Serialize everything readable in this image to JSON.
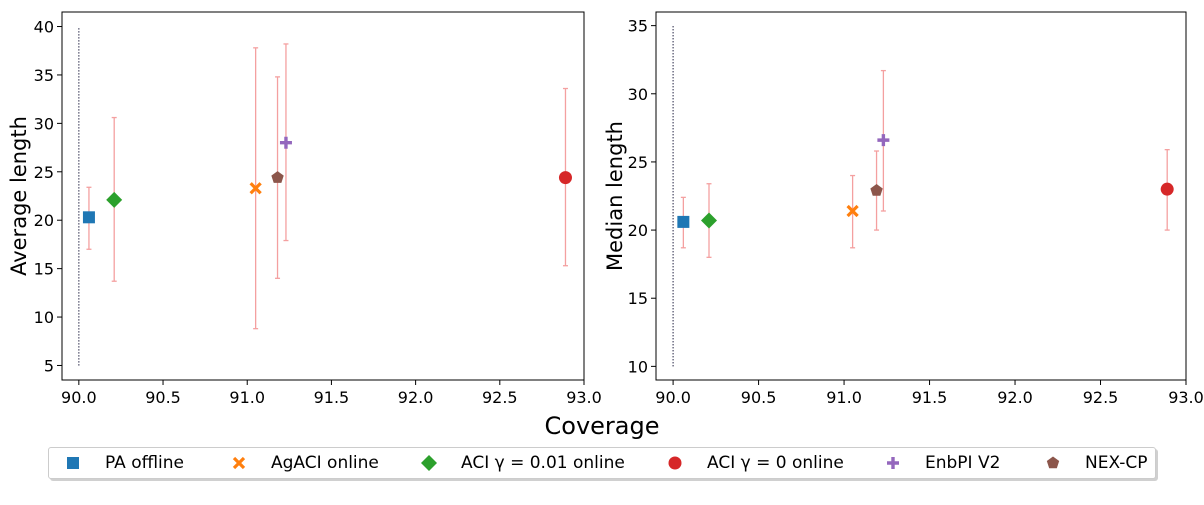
{
  "chart_data": [
    {
      "type": "scatter",
      "panel": "left",
      "title": "",
      "xlabel": "",
      "ylabel": "Average length",
      "xlim": [
        89.9,
        93.0
      ],
      "ylim": [
        3.5,
        41.5
      ],
      "xticks": [
        "90.0",
        "90.5",
        "91.0",
        "91.5",
        "92.0",
        "92.5",
        "93.0"
      ],
      "xtick_values": [
        90.0,
        90.5,
        91.0,
        91.5,
        92.0,
        92.5,
        93.0
      ],
      "yticks": [
        "5",
        "10",
        "15",
        "20",
        "25",
        "30",
        "35",
        "40"
      ],
      "ytick_values": [
        5,
        10,
        15,
        20,
        25,
        30,
        35,
        40
      ],
      "target_line": {
        "x": 90.0,
        "y_range": [
          5,
          40
        ]
      },
      "points": [
        {
          "series": "PA offline",
          "x": 90.06,
          "y": 20.3,
          "err_low": 17.0,
          "err_high": 23.4
        },
        {
          "series": "ACI γ = 0.01 online",
          "x": 90.21,
          "y": 22.1,
          "err_low": 13.7,
          "err_high": 30.6
        },
        {
          "series": "AgACI online",
          "x": 91.05,
          "y": 23.3,
          "err_low": 8.8,
          "err_high": 37.8
        },
        {
          "series": "NEX-CP",
          "x": 91.18,
          "y": 24.4,
          "err_low": 14.0,
          "err_high": 34.8
        },
        {
          "series": "EnbPI V2",
          "x": 91.23,
          "y": 28.0,
          "err_low": 17.9,
          "err_high": 38.2
        },
        {
          "series": "ACI γ = 0 online",
          "x": 92.89,
          "y": 24.4,
          "err_low": 15.3,
          "err_high": 33.6
        }
      ]
    },
    {
      "type": "scatter",
      "panel": "right",
      "title": "",
      "xlabel": "",
      "ylabel": "Median length",
      "xlim": [
        89.9,
        93.0
      ],
      "ylim": [
        9.0,
        36.0
      ],
      "xticks": [
        "90.0",
        "90.5",
        "91.0",
        "91.5",
        "92.0",
        "92.5",
        "93.0"
      ],
      "xtick_values": [
        90.0,
        90.5,
        91.0,
        91.5,
        92.0,
        92.5,
        93.0
      ],
      "yticks": [
        "10",
        "15",
        "20",
        "25",
        "30",
        "35"
      ],
      "ytick_values": [
        10,
        15,
        20,
        25,
        30,
        35
      ],
      "target_line": {
        "x": 90.0,
        "y_range": [
          10,
          35
        ]
      },
      "points": [
        {
          "series": "PA offline",
          "x": 90.06,
          "y": 20.6,
          "err_low": 18.7,
          "err_high": 22.4
        },
        {
          "series": "ACI γ = 0.01 online",
          "x": 90.21,
          "y": 20.7,
          "err_low": 18.0,
          "err_high": 23.4
        },
        {
          "series": "AgACI online",
          "x": 91.05,
          "y": 21.4,
          "err_low": 18.7,
          "err_high": 24.0
        },
        {
          "series": "NEX-CP",
          "x": 91.19,
          "y": 22.9,
          "err_low": 20.0,
          "err_high": 25.8
        },
        {
          "series": "EnbPI V2",
          "x": 91.23,
          "y": 26.6,
          "err_low": 21.4,
          "err_high": 31.7
        },
        {
          "series": "ACI γ = 0 online",
          "x": 92.89,
          "y": 23.0,
          "err_low": 20.0,
          "err_high": 25.9
        }
      ]
    }
  ],
  "shared_xlabel": "Coverage",
  "legend": {
    "placement": "bottom",
    "items": [
      {
        "label": "PA offline",
        "marker": "square",
        "color": "#1f77b4"
      },
      {
        "label": "AgACI online",
        "marker": "x",
        "color": "#ff7f0e"
      },
      {
        "label": "ACI γ = 0.01 online",
        "marker": "diamond",
        "color": "#2ca02c"
      },
      {
        "label": "ACI γ = 0 online",
        "marker": "circle",
        "color": "#d62728"
      },
      {
        "label": "EnbPI V2",
        "marker": "plus",
        "color": "#9467bd"
      },
      {
        "label": "NEX-CP",
        "marker": "pentagon",
        "color": "#8c564b"
      }
    ]
  },
  "colors": {
    "errorbar": "#f4a0a0",
    "target_line": "#2b2b4a",
    "axis": "#000000"
  }
}
